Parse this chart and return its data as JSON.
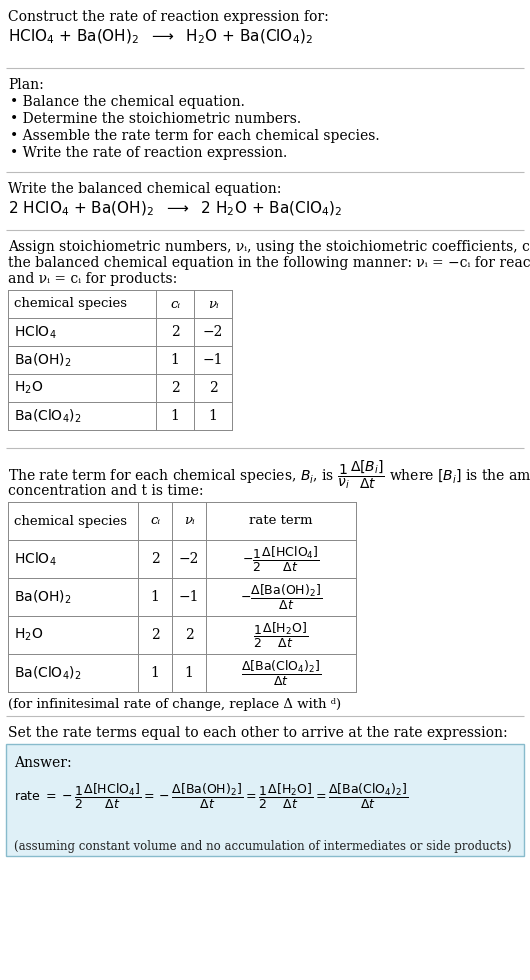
{
  "bg_color": "#ffffff",
  "answer_box_color": "#dff0f7",
  "answer_box_border": "#88bbcc",
  "plan_items": [
    "• Balance the chemical equation.",
    "• Determine the stoichiometric numbers.",
    "• Assemble the rate term for each chemical species.",
    "• Write the rate of reaction expression."
  ],
  "infinitesimal_note": "(for infinitesimal rate of change, replace Δ with ᵈ)",
  "set_equal_text": "Set the rate terms equal to each other to arrive at the rate expression:",
  "answer_label": "Answer:",
  "assuming_note": "(assuming constant volume and no accumulation of intermediates or side products)",
  "line_color": "#bbbbbb",
  "table_line_color": "#888888"
}
